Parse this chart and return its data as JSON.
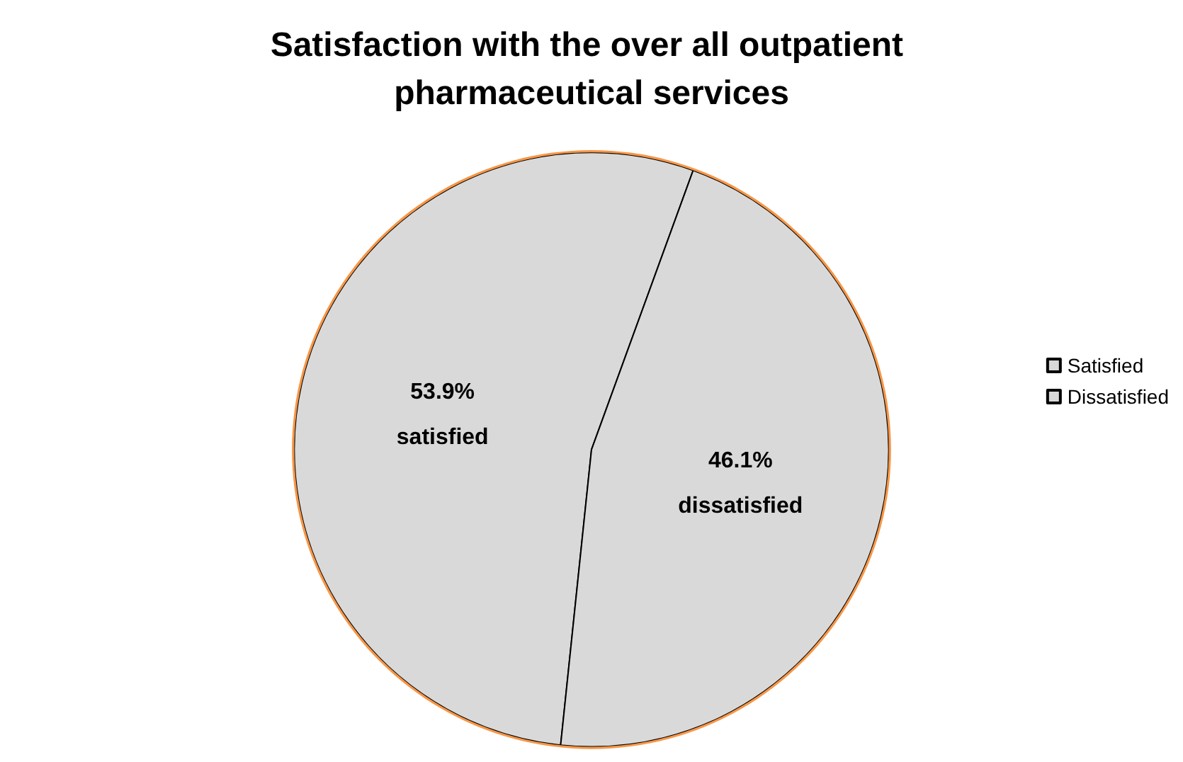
{
  "chart_data": {
    "type": "pie",
    "title": "Satisfaction with the over all outpatient pharmaceutical services",
    "categories": [
      "Satisfied",
      "Dissatisfied"
    ],
    "values": [
      53.9,
      46.1
    ],
    "colors": [
      "#d9d9d9",
      "#d9d9d9"
    ],
    "value_labels": [
      "53.9%",
      "46.1%"
    ],
    "annotations": [
      "satisfied",
      "dissatisfied"
    ],
    "legend": "right"
  }
}
